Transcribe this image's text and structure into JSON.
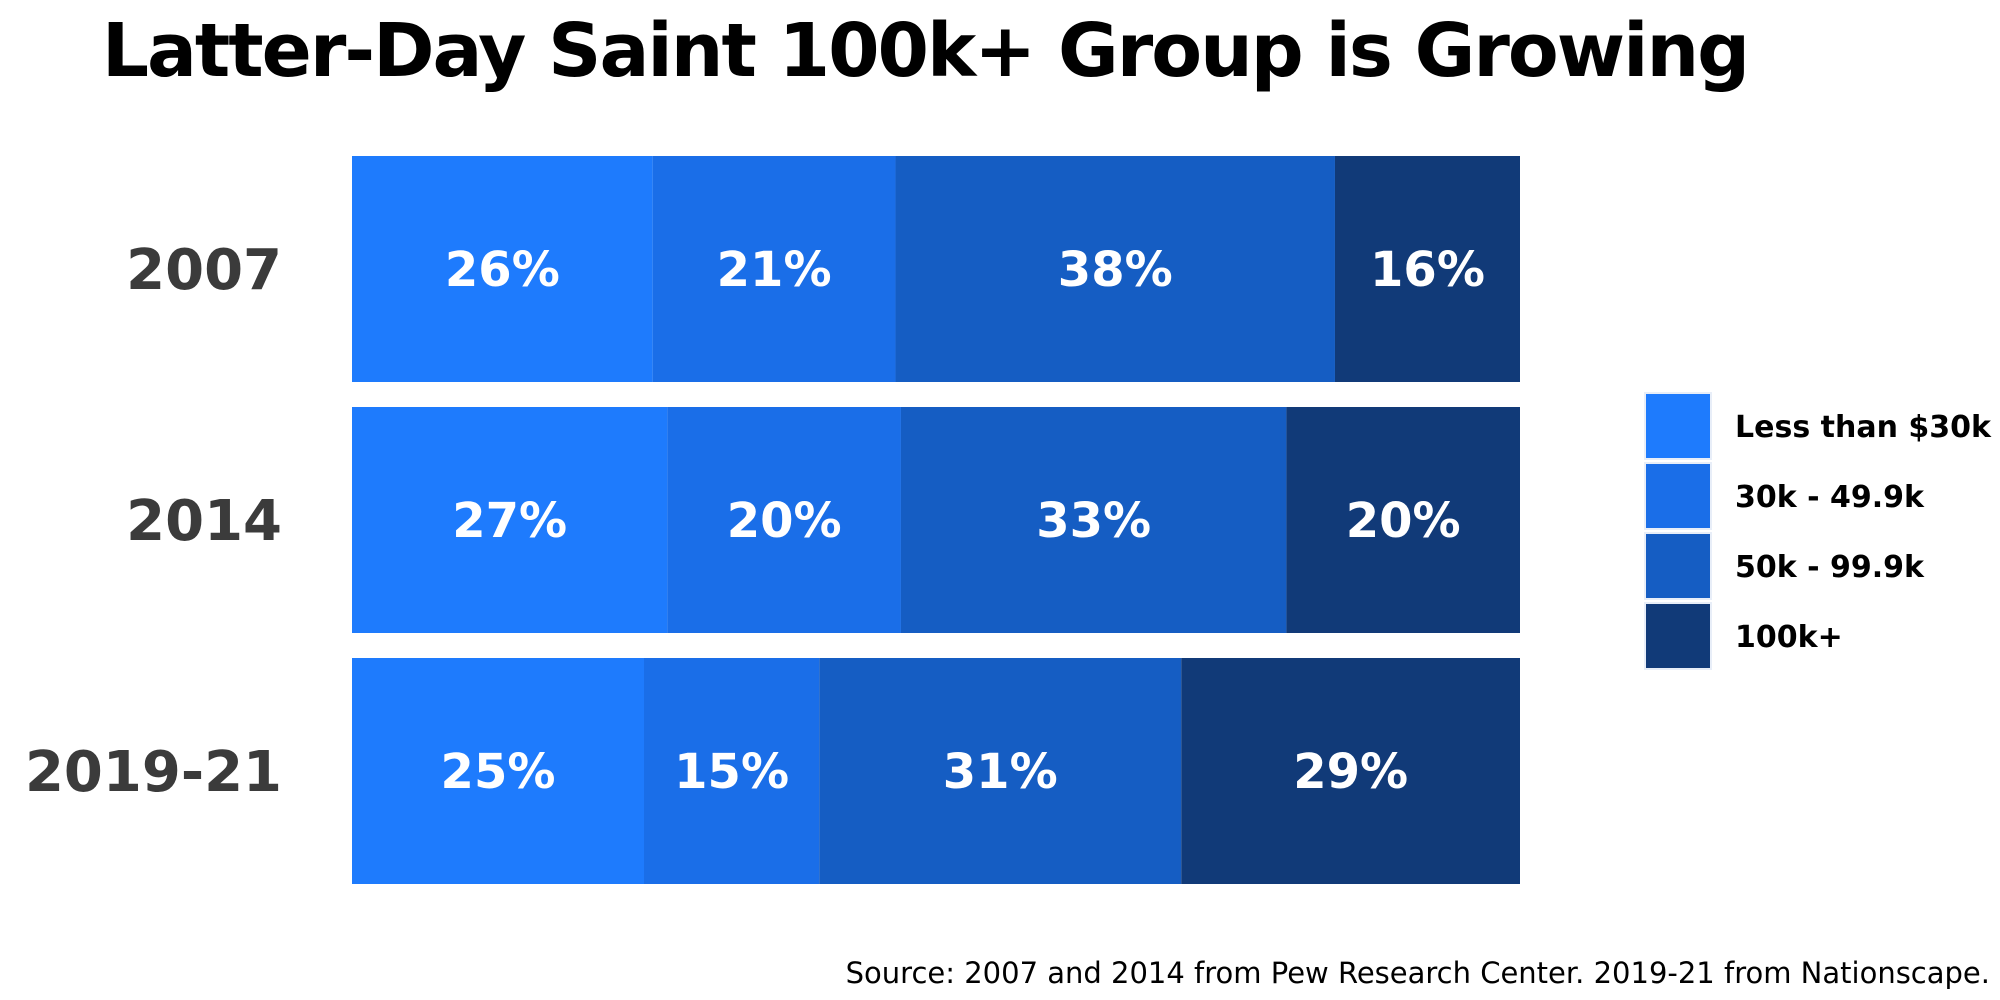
{
  "chart_data": {
    "type": "bar",
    "orientation": "horizontal",
    "stacked": true,
    "title": "Latter-Day Saint 100k+ Group is Growing",
    "categories": [
      "2007",
      "2014",
      "2019-21"
    ],
    "series": [
      {
        "name": "Less than $30k",
        "color": "#1e7bfd",
        "values": [
          26,
          27,
          25
        ],
        "labels": [
          "26%",
          "27%",
          "25%"
        ]
      },
      {
        "name": "30k - 49.9k",
        "color": "#1a6ee8",
        "values": [
          21,
          20,
          15
        ],
        "labels": [
          "21%",
          "20%",
          "15%"
        ]
      },
      {
        "name": "50k - 99.9k",
        "color": "#155dc3",
        "values": [
          38,
          33,
          31
        ],
        "labels": [
          "38%",
          "33%",
          "31%"
        ]
      },
      {
        "name": "100k+",
        "color": "#113a78",
        "values": [
          16,
          20,
          29
        ],
        "labels": [
          "16%",
          "20%",
          "29%"
        ]
      }
    ],
    "xlim": [
      0,
      100
    ],
    "grid": false,
    "legend_position": "right",
    "source": "Source: 2007 and 2014 from Pew Research Center. 2019-21 from Nationscape."
  }
}
